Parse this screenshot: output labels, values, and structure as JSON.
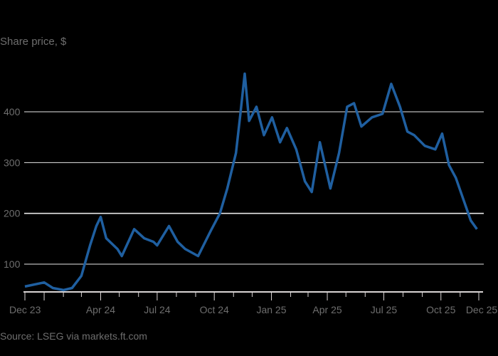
{
  "chart_data": {
    "type": "line",
    "title": "",
    "ylabel": "Share price, $",
    "xlabel": "",
    "source": "Source: LSEG via markets.ft.com",
    "ylim": [
      45,
      490
    ],
    "yticks": [
      100,
      200,
      300,
      400
    ],
    "xticks": [
      "Dec 23",
      "Apr 24",
      "Jul 24",
      "Oct 24",
      "Jan 25",
      "Apr 25",
      "Jul 25",
      "Oct 25",
      "Dec 25"
    ],
    "grid": "horizontal",
    "legend": "none",
    "series": [
      {
        "name": "Share price",
        "color": "#1f5fa0",
        "points": [
          {
            "date": "2023-12-01",
            "value": 56
          },
          {
            "date": "2024-01-01",
            "value": 64
          },
          {
            "date": "2024-01-15",
            "value": 53
          },
          {
            "date": "2024-02-01",
            "value": 49
          },
          {
            "date": "2024-02-15",
            "value": 53
          },
          {
            "date": "2024-03-01",
            "value": 77
          },
          {
            "date": "2024-03-15",
            "value": 137
          },
          {
            "date": "2024-03-25",
            "value": 175
          },
          {
            "date": "2024-04-01",
            "value": 193
          },
          {
            "date": "2024-04-10",
            "value": 151
          },
          {
            "date": "2024-04-28",
            "value": 130
          },
          {
            "date": "2024-05-05",
            "value": 116
          },
          {
            "date": "2024-05-25",
            "value": 169
          },
          {
            "date": "2024-06-10",
            "value": 151
          },
          {
            "date": "2024-06-25",
            "value": 144
          },
          {
            "date": "2024-07-01",
            "value": 137
          },
          {
            "date": "2024-07-20",
            "value": 175
          },
          {
            "date": "2024-08-03",
            "value": 144
          },
          {
            "date": "2024-08-15",
            "value": 130
          },
          {
            "date": "2024-09-05",
            "value": 116
          },
          {
            "date": "2024-09-25",
            "value": 165
          },
          {
            "date": "2024-10-10",
            "value": 200
          },
          {
            "date": "2024-10-22",
            "value": 249
          },
          {
            "date": "2024-11-05",
            "value": 319
          },
          {
            "date": "2024-11-12",
            "value": 396
          },
          {
            "date": "2024-11-19",
            "value": 475
          },
          {
            "date": "2024-11-26",
            "value": 382
          },
          {
            "date": "2024-12-08",
            "value": 410
          },
          {
            "date": "2024-12-20",
            "value": 354
          },
          {
            "date": "2025-01-02",
            "value": 389
          },
          {
            "date": "2025-01-15",
            "value": 340
          },
          {
            "date": "2025-01-26",
            "value": 368
          },
          {
            "date": "2025-02-10",
            "value": 326
          },
          {
            "date": "2025-02-24",
            "value": 263
          },
          {
            "date": "2025-03-07",
            "value": 242
          },
          {
            "date": "2025-03-20",
            "value": 340
          },
          {
            "date": "2025-04-06",
            "value": 249
          },
          {
            "date": "2025-04-20",
            "value": 319
          },
          {
            "date": "2025-05-03",
            "value": 410
          },
          {
            "date": "2025-05-14",
            "value": 417
          },
          {
            "date": "2025-05-26",
            "value": 371
          },
          {
            "date": "2025-06-12",
            "value": 389
          },
          {
            "date": "2025-06-29",
            "value": 396
          },
          {
            "date": "2025-07-13",
            "value": 455
          },
          {
            "date": "2025-07-27",
            "value": 410
          },
          {
            "date": "2025-08-08",
            "value": 361
          },
          {
            "date": "2025-08-19",
            "value": 354
          },
          {
            "date": "2025-09-05",
            "value": 333
          },
          {
            "date": "2025-09-22",
            "value": 326
          },
          {
            "date": "2025-10-03",
            "value": 357
          },
          {
            "date": "2025-10-14",
            "value": 295
          },
          {
            "date": "2025-10-25",
            "value": 270
          },
          {
            "date": "2025-11-06",
            "value": 228
          },
          {
            "date": "2025-11-18",
            "value": 186
          },
          {
            "date": "2025-11-28",
            "value": 169
          }
        ]
      }
    ]
  },
  "labels": {
    "y_title": "Share price, $",
    "source": "Source: LSEG via markets.ft.com"
  },
  "colors": {
    "background": "#000000",
    "line": "#1f5fa0",
    "grid": "#e6e6e6",
    "text": "#6e6e6e"
  }
}
